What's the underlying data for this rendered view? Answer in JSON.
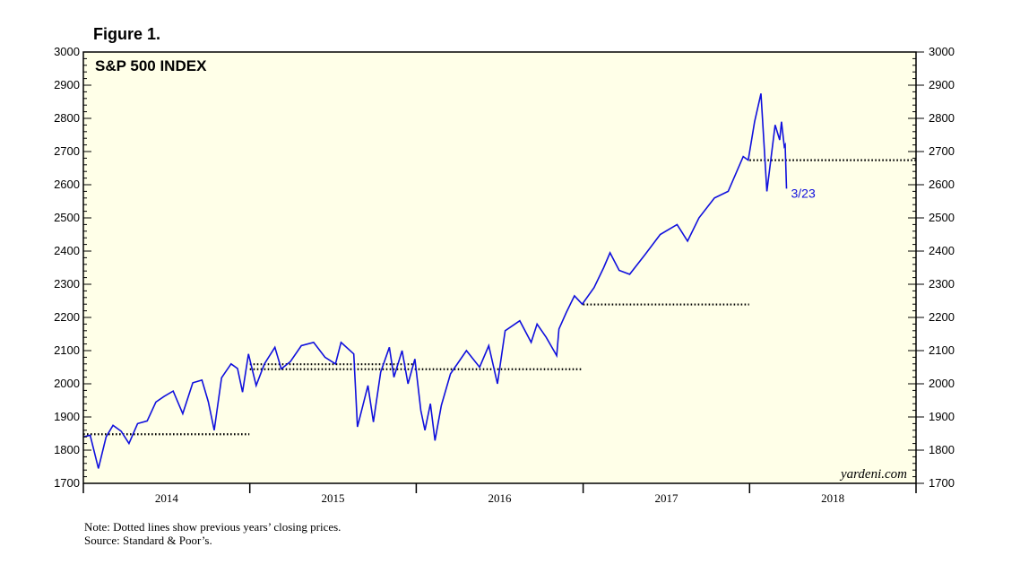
{
  "figure_label": "Figure 1.",
  "notes": {
    "line1": "Note: Dotted lines show previous years’ closing prices.",
    "line2": "Source: Standard & Poor’s."
  },
  "colors": {
    "plot_background": "#ffffe8",
    "series": "#1010dd",
    "reference_lines": "#000000"
  },
  "chart_data": {
    "type": "line",
    "title": "S&P 500 INDEX",
    "watermark": "yardeni.com",
    "end_label": "3/23",
    "ylim": [
      1700,
      3000
    ],
    "y_ticks": [
      1700,
      1800,
      1900,
      2000,
      2100,
      2200,
      2300,
      2400,
      2500,
      2600,
      2700,
      2800,
      2900,
      3000
    ],
    "x_tick_labels": [
      "2014",
      "2015",
      "2016",
      "2017",
      "2018"
    ],
    "x_range": [
      "2014-01-01",
      "2018-12-31"
    ],
    "grid": false,
    "y_axis_both_sides": true,
    "series": [
      {
        "x": [
          "2014-01-02",
          "2014-01-16",
          "2014-02-03",
          "2014-02-20",
          "2014-03-07",
          "2014-03-25",
          "2014-04-11",
          "2014-04-30",
          "2014-05-21",
          "2014-06-09",
          "2014-06-27",
          "2014-07-17",
          "2014-08-07",
          "2014-08-29",
          "2014-09-18",
          "2014-10-02",
          "2014-10-15",
          "2014-10-31",
          "2014-11-21",
          "2014-12-05",
          "2014-12-16",
          "2014-12-29",
          "2015-01-15",
          "2015-02-02",
          "2015-02-25",
          "2015-03-11",
          "2015-03-31",
          "2015-04-24",
          "2015-05-21",
          "2015-06-15",
          "2015-07-08",
          "2015-07-20",
          "2015-08-17",
          "2015-08-25",
          "2015-09-17",
          "2015-09-29",
          "2015-10-15",
          "2015-11-03",
          "2015-11-13",
          "2015-12-01",
          "2015-12-14",
          "2015-12-29",
          "2016-01-11",
          "2016-01-20",
          "2016-02-01",
          "2016-02-11",
          "2016-02-25",
          "2016-03-16",
          "2016-04-20",
          "2016-05-19",
          "2016-06-08",
          "2016-06-27",
          "2016-07-14",
          "2016-08-15",
          "2016-09-09",
          "2016-09-22",
          "2016-10-12",
          "2016-11-04",
          "2016-11-09",
          "2016-11-25",
          "2016-12-13",
          "2016-12-30",
          "2017-01-25",
          "2017-02-15",
          "2017-03-01",
          "2017-03-21",
          "2017-04-13",
          "2017-05-17",
          "2017-06-19",
          "2017-07-26",
          "2017-08-18",
          "2017-09-12",
          "2017-10-16",
          "2017-11-15",
          "2017-12-18",
          "2017-12-29",
          "2018-01-12",
          "2018-01-26",
          "2018-02-08",
          "2018-02-26",
          "2018-03-08",
          "2018-03-12",
          "2018-03-18",
          "2018-03-20",
          "2018-03-23"
        ],
        "values": [
          1840,
          1845,
          1745,
          1840,
          1875,
          1857,
          1820,
          1880,
          1888,
          1945,
          1962,
          1978,
          1910,
          2003,
          2011,
          1946,
          1860,
          2018,
          2060,
          2046,
          1975,
          2090,
          1995,
          2060,
          2110,
          2045,
          2067,
          2115,
          2125,
          2080,
          2060,
          2125,
          2090,
          1870,
          1995,
          1885,
          2035,
          2110,
          2020,
          2100,
          2000,
          2075,
          1920,
          1860,
          1940,
          1829,
          1935,
          2030,
          2100,
          2050,
          2115,
          2000,
          2160,
          2190,
          2125,
          2180,
          2140,
          2085,
          2165,
          2215,
          2265,
          2240,
          2290,
          2350,
          2395,
          2342,
          2330,
          2390,
          2450,
          2480,
          2430,
          2500,
          2560,
          2580,
          2685,
          2674,
          2790,
          2875,
          2580,
          2780,
          2735,
          2790,
          2715,
          2720,
          2588
        ],
        "reference_lines": [
          {
            "value": 1848,
            "from": "2014-01-01",
            "to": "2014-12-31"
          },
          {
            "value": 2059,
            "from": "2015-01-01",
            "to": "2015-12-31"
          },
          {
            "value": 2044,
            "from": "2015-01-01",
            "to": "2016-12-31"
          },
          {
            "value": 2239,
            "from": "2017-01-01",
            "to": "2017-12-31"
          },
          {
            "value": 2674,
            "from": "2018-01-01",
            "to": "2018-12-31"
          }
        ]
      }
    ]
  }
}
